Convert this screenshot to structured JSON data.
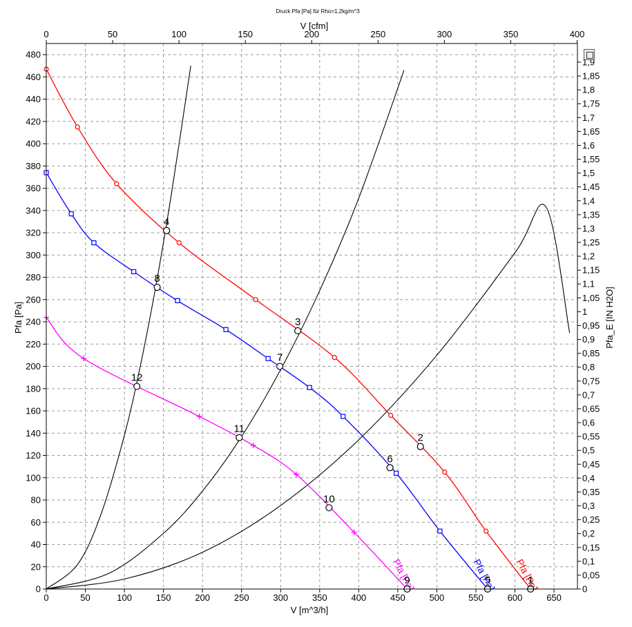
{
  "chart_data": {
    "type": "line",
    "title": "Druck Pfa [Pa] für Rho=1,2kg/m^3",
    "xlabel": "V [m^3/h]",
    "ylabel": "Pfa [Pa]",
    "x2label": "V [cfm]",
    "y2label": "Pfa_E [IN H2O]",
    "xlim": [
      0,
      680
    ],
    "ylim": [
      0,
      490
    ],
    "x_ticks": [
      0,
      50,
      100,
      150,
      200,
      250,
      300,
      350,
      400,
      450,
      500,
      550,
      600,
      650
    ],
    "y_ticks": [
      0,
      20,
      40,
      60,
      80,
      100,
      120,
      140,
      160,
      180,
      200,
      220,
      240,
      260,
      280,
      300,
      320,
      340,
      360,
      380,
      400,
      420,
      440,
      460,
      480
    ],
    "x2_ticks": [
      0,
      50,
      100,
      150,
      200,
      250,
      300,
      350,
      400
    ],
    "y2_ticks": [
      "0",
      "0,05",
      "0,1",
      "0,15",
      "0,2",
      "0,25",
      "0,3",
      "0,35",
      "0,4",
      "0,45",
      "0,5",
      "0,55",
      "0,6",
      "0,65",
      "0,7",
      "0,75",
      "0,8",
      "0,85",
      "0,9",
      "0,95",
      "1",
      "1,05",
      "1,1",
      "1,15",
      "1,2",
      "1,25",
      "1,3",
      "1,35",
      "1,4",
      "1,45",
      "1,5",
      "1,55",
      "1,6",
      "1,65",
      "1,7",
      "1,75",
      "1,8",
      "1,85",
      "1,9"
    ],
    "grid": true,
    "series": [
      {
        "name": "Pfa [Pa]",
        "color": "#ff0000",
        "marker": "circle",
        "x": [
          0,
          40,
          90,
          170,
          268,
          369,
          441,
          510,
          563,
          620
        ],
        "values": [
          467,
          415,
          364,
          311,
          260,
          208,
          156,
          105,
          52,
          0
        ]
      },
      {
        "name": "Pfa [Pa]",
        "color": "#0000ff",
        "marker": "square",
        "x": [
          0,
          32,
          61,
          112,
          168,
          230,
          284,
          337,
          380,
          448,
          504,
          565
        ],
        "values": [
          374,
          337,
          311,
          285,
          259,
          233,
          207,
          181,
          155,
          104,
          52,
          0
        ]
      },
      {
        "name": "Pfa [Pa]",
        "color": "#ff00ff",
        "marker": "plus",
        "x": [
          0,
          48,
          196,
          265,
          320,
          394,
          462
        ],
        "values": [
          244,
          207,
          155,
          129,
          103,
          51,
          0
        ]
      }
    ],
    "system_curves": [
      {
        "color": "#000000",
        "x": [
          0,
          40,
          70,
          100,
          120,
          140,
          160,
          185
        ],
        "values": [
          0,
          22,
          67,
          138,
          199,
          271,
          354,
          470
        ]
      },
      {
        "color": "#000000",
        "x": [
          0,
          80,
          150,
          200,
          250,
          300,
          350,
          400,
          458
        ],
        "values": [
          0,
          14,
          50,
          88,
          137,
          197,
          268,
          351,
          466
        ]
      },
      {
        "color": "#000000",
        "x": [
          0,
          100,
          200,
          300,
          400,
          500,
          600,
          640,
          670
        ],
        "values": [
          0,
          9,
          33,
          75,
          134,
          210,
          302,
          343,
          230
        ]
      }
    ],
    "points": [
      {
        "label": "1",
        "x": 620,
        "value": 0
      },
      {
        "label": "2",
        "x": 479,
        "value": 128
      },
      {
        "label": "3",
        "x": 322,
        "value": 232
      },
      {
        "label": "4",
        "x": 154,
        "value": 322
      },
      {
        "label": "5",
        "x": 565,
        "value": 0
      },
      {
        "label": "6",
        "x": 440,
        "value": 109
      },
      {
        "label": "7",
        "x": 299,
        "value": 200
      },
      {
        "label": "8",
        "x": 142,
        "value": 271
      },
      {
        "label": "9",
        "x": 462,
        "value": 0
      },
      {
        "label": "10",
        "x": 362,
        "value": 73
      },
      {
        "label": "11",
        "x": 247,
        "value": 136
      },
      {
        "label": "12",
        "x": 116,
        "value": 182
      }
    ]
  }
}
